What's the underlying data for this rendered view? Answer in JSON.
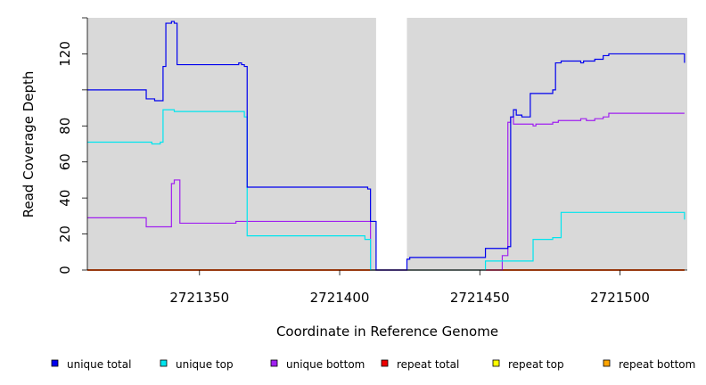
{
  "chart_data": {
    "type": "line",
    "title": "",
    "xlabel": "Coordinate in Reference Genome",
    "ylabel": "Read Coverage Depth",
    "xlim": [
      2721310,
      2721524
    ],
    "ylim": [
      0,
      140
    ],
    "x_ticks": [
      2721350,
      2721400,
      2721450,
      2721500
    ],
    "x_tick_labels": [
      "2721350",
      "2721400",
      "2721450",
      "2721500"
    ],
    "y_ticks": [
      0,
      20,
      40,
      60,
      80,
      120
    ],
    "y_tick_labels": [
      "0",
      "20",
      "40",
      "60",
      "80",
      "120"
    ],
    "gap": [
      2721413,
      2721424
    ],
    "background_color": "#d9d9d9",
    "grid": false,
    "legend_position": "bottom",
    "series": [
      {
        "name": "unique total",
        "color": "#0000ee",
        "x": [
          2721310,
          2721331,
          2721331,
          2721334,
          2721334,
          2721337,
          2721337,
          2721338,
          2721338,
          2721340,
          2721340,
          2721341,
          2721341,
          2721342,
          2721342,
          2721343,
          2721343,
          2721364,
          2721364,
          2721365,
          2721365,
          2721366,
          2721366,
          2721367,
          2721367,
          2721410,
          2721410,
          2721411,
          2721411,
          2721413,
          2721413,
          2721424,
          2721424,
          2721425,
          2721425,
          2721452,
          2721452,
          2721460,
          2721460,
          2721461,
          2721461,
          2721462,
          2721462,
          2721463,
          2721463,
          2721465,
          2721465,
          2721468,
          2721468,
          2721476,
          2721476,
          2721477,
          2721477,
          2721479,
          2721479,
          2721486,
          2721486,
          2721487,
          2721487,
          2721491,
          2721491,
          2721494,
          2721494,
          2721496,
          2721496,
          2721523,
          2721523
        ],
        "y": [
          100,
          100,
          95,
          95,
          94,
          94,
          113,
          113,
          137,
          137,
          138,
          138,
          137,
          137,
          114,
          114,
          114,
          114,
          115,
          115,
          114,
          114,
          113,
          113,
          46,
          46,
          45,
          45,
          27,
          27,
          0,
          0,
          6,
          6,
          7,
          7,
          12,
          12,
          13,
          13,
          85,
          85,
          89,
          89,
          86,
          86,
          85,
          85,
          98,
          98,
          100,
          100,
          115,
          115,
          116,
          116,
          115,
          115,
          116,
          116,
          117,
          117,
          119,
          119,
          120,
          120,
          115
        ]
      },
      {
        "name": "unique top",
        "color": "#00e5ee",
        "x": [
          2721310,
          2721333,
          2721333,
          2721336,
          2721336,
          2721337,
          2721337,
          2721341,
          2721341,
          2721363,
          2721363,
          2721366,
          2721366,
          2721367,
          2721367,
          2721409,
          2721409,
          2721411,
          2721411,
          2721413,
          2721424,
          2721452,
          2721452,
          2721469,
          2721469,
          2721476,
          2721476,
          2721479,
          2721479,
          2721523,
          2721523
        ],
        "y": [
          71,
          71,
          70,
          70,
          71,
          71,
          89,
          89,
          88,
          88,
          88,
          88,
          85,
          85,
          19,
          19,
          17,
          17,
          0,
          0,
          0,
          0,
          5,
          5,
          17,
          17,
          18,
          18,
          32,
          32,
          28
        ]
      },
      {
        "name": "unique bottom",
        "color": "#a020f0",
        "x": [
          2721310,
          2721331,
          2721331,
          2721340,
          2721340,
          2721341,
          2721341,
          2721343,
          2721343,
          2721363,
          2721363,
          2721411,
          2721411,
          2721413,
          2721424,
          2721458,
          2721458,
          2721460,
          2721460,
          2721461,
          2721461,
          2721462,
          2721462,
          2721469,
          2721469,
          2721470,
          2721470,
          2721476,
          2721476,
          2721478,
          2721478,
          2721486,
          2721486,
          2721488,
          2721488,
          2721491,
          2721491,
          2721494,
          2721494,
          2721496,
          2721496,
          2721523
        ],
        "y": [
          29,
          29,
          24,
          24,
          48,
          48,
          50,
          50,
          26,
          26,
          27,
          27,
          0,
          0,
          0,
          0,
          8,
          8,
          82,
          82,
          85,
          85,
          81,
          81,
          80,
          80,
          81,
          81,
          82,
          82,
          83,
          83,
          84,
          84,
          83,
          83,
          84,
          84,
          85,
          85,
          87,
          87
        ]
      },
      {
        "name": "repeat total",
        "color": "#ee0000",
        "x": [
          2721310,
          2721523
        ],
        "y": [
          0,
          0
        ]
      },
      {
        "name": "repeat top",
        "color": "#ffff00",
        "x": [
          2721310,
          2721523
        ],
        "y": [
          0,
          0
        ]
      },
      {
        "name": "repeat bottom",
        "color": "#ffa500",
        "x": [
          2721310,
          2721523
        ],
        "y": [
          0,
          0
        ]
      }
    ]
  }
}
